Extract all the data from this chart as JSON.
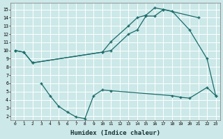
{
  "background_color": "#cce8e8",
  "grid_color": "#ffffff",
  "line_color": "#1a6b6b",
  "xlabel": "Humidex (Indice chaleur)",
  "xlim": [
    -0.5,
    23.5
  ],
  "ylim": [
    1.5,
    15.8
  ],
  "yticks": [
    2,
    3,
    4,
    5,
    6,
    7,
    8,
    9,
    10,
    11,
    12,
    13,
    14,
    15
  ],
  "xticks": [
    0,
    1,
    2,
    3,
    4,
    5,
    6,
    7,
    8,
    9,
    10,
    11,
    12,
    13,
    14,
    15,
    16,
    17,
    18,
    19,
    20,
    21,
    22,
    23
  ],
  "series": [
    {
      "x": [
        0,
        1,
        2,
        10,
        11,
        13,
        14,
        15,
        16,
        17,
        21
      ],
      "y": [
        10.0,
        9.8,
        8.5,
        9.8,
        11.1,
        13.0,
        14.0,
        14.3,
        15.2,
        15.0,
        14.0
      ]
    },
    {
      "x": [
        0,
        1,
        2,
        10,
        11,
        13,
        14,
        15,
        16,
        17,
        18,
        20,
        22,
        23
      ],
      "y": [
        10.0,
        9.8,
        8.5,
        9.8,
        10.0,
        12.0,
        12.5,
        14.2,
        14.2,
        15.0,
        14.8,
        12.5,
        9.0,
        4.5
      ]
    },
    {
      "x": [
        3,
        4,
        5,
        6,
        7,
        8,
        9,
        10,
        11,
        18,
        19,
        20,
        22,
        23
      ],
      "y": [
        6.0,
        4.5,
        3.2,
        2.5,
        1.9,
        1.7,
        4.5,
        5.2,
        5.1,
        4.5,
        4.3,
        4.2,
        5.5,
        4.5
      ]
    }
  ]
}
